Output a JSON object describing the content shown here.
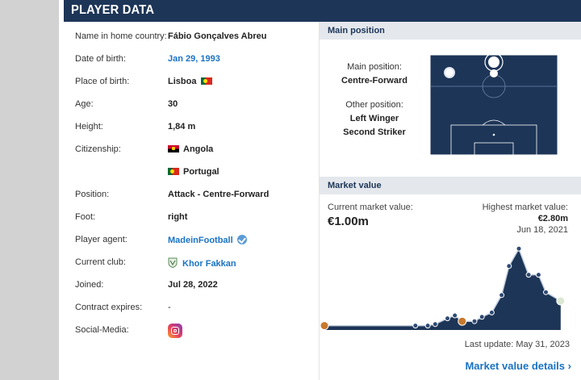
{
  "header": {
    "title": "PLAYER DATA"
  },
  "player": {
    "rows": [
      {
        "label": "Name in home country:",
        "value": "Fábio Gonçalves Abreu"
      },
      {
        "label": "Date of birth:",
        "value": "Jan 29, 1993"
      },
      {
        "label": "Place of birth:",
        "value": "Lisboa"
      },
      {
        "label": "Age:",
        "value": "30"
      },
      {
        "label": "Height:",
        "value": "1,84 m"
      },
      {
        "label": "Citizenship:",
        "value": "Angola"
      },
      {
        "label": "",
        "value": "Portugal"
      },
      {
        "label": "Position:",
        "value": "Attack - Centre-Forward"
      },
      {
        "label": "Foot:",
        "value": "right"
      },
      {
        "label": "Player agent:",
        "value": "MadeinFootball"
      },
      {
        "label": "Current club:",
        "value": "Khor Fakkan"
      },
      {
        "label": "Joined:",
        "value": "Jul 28, 2022"
      },
      {
        "label": "Contract expires:",
        "value": "-"
      },
      {
        "label": "Social-Media:",
        "value": ""
      }
    ]
  },
  "icons": {
    "flag_portugal": "flag-portugal-icon",
    "flag_angola": "flag-angola-icon",
    "verified": "verified-badge-icon",
    "club": "khor-fakkan-crest-icon",
    "instagram": "instagram-icon",
    "chevron": "chevron-right-icon"
  },
  "main_position": {
    "heading": "Main position",
    "main_label": "Main position:",
    "main_value": "Centre-Forward",
    "other_label": "Other position:",
    "other_values": [
      "Left Winger",
      "Second Striker"
    ]
  },
  "market_value": {
    "heading": "Market value",
    "current_label": "Current market value:",
    "current_value": "€1.00m",
    "highest_label": "Highest market value:",
    "highest_value": "€2.80m",
    "highest_date": "Jun 18, 2021",
    "last_update": "Last update: May 31, 2023",
    "details_link": "Market value details",
    "details_chevron": "›"
  },
  "chart_data": {
    "type": "area",
    "values": [
      0.15,
      0.15,
      0.15,
      0.2,
      0.4,
      0.5,
      0.3,
      0.3,
      0.45,
      0.6,
      1.2,
      2.2,
      2.8,
      1.9,
      1.9,
      1.3,
      1.0
    ],
    "ylim": [
      0,
      3.0
    ],
    "fill": "#1d3557",
    "line": "#c7d2e0"
  },
  "colors": {
    "header_bg": "#1d3557",
    "link": "#1a73c4",
    "section_bg": "#e4e8ed"
  }
}
